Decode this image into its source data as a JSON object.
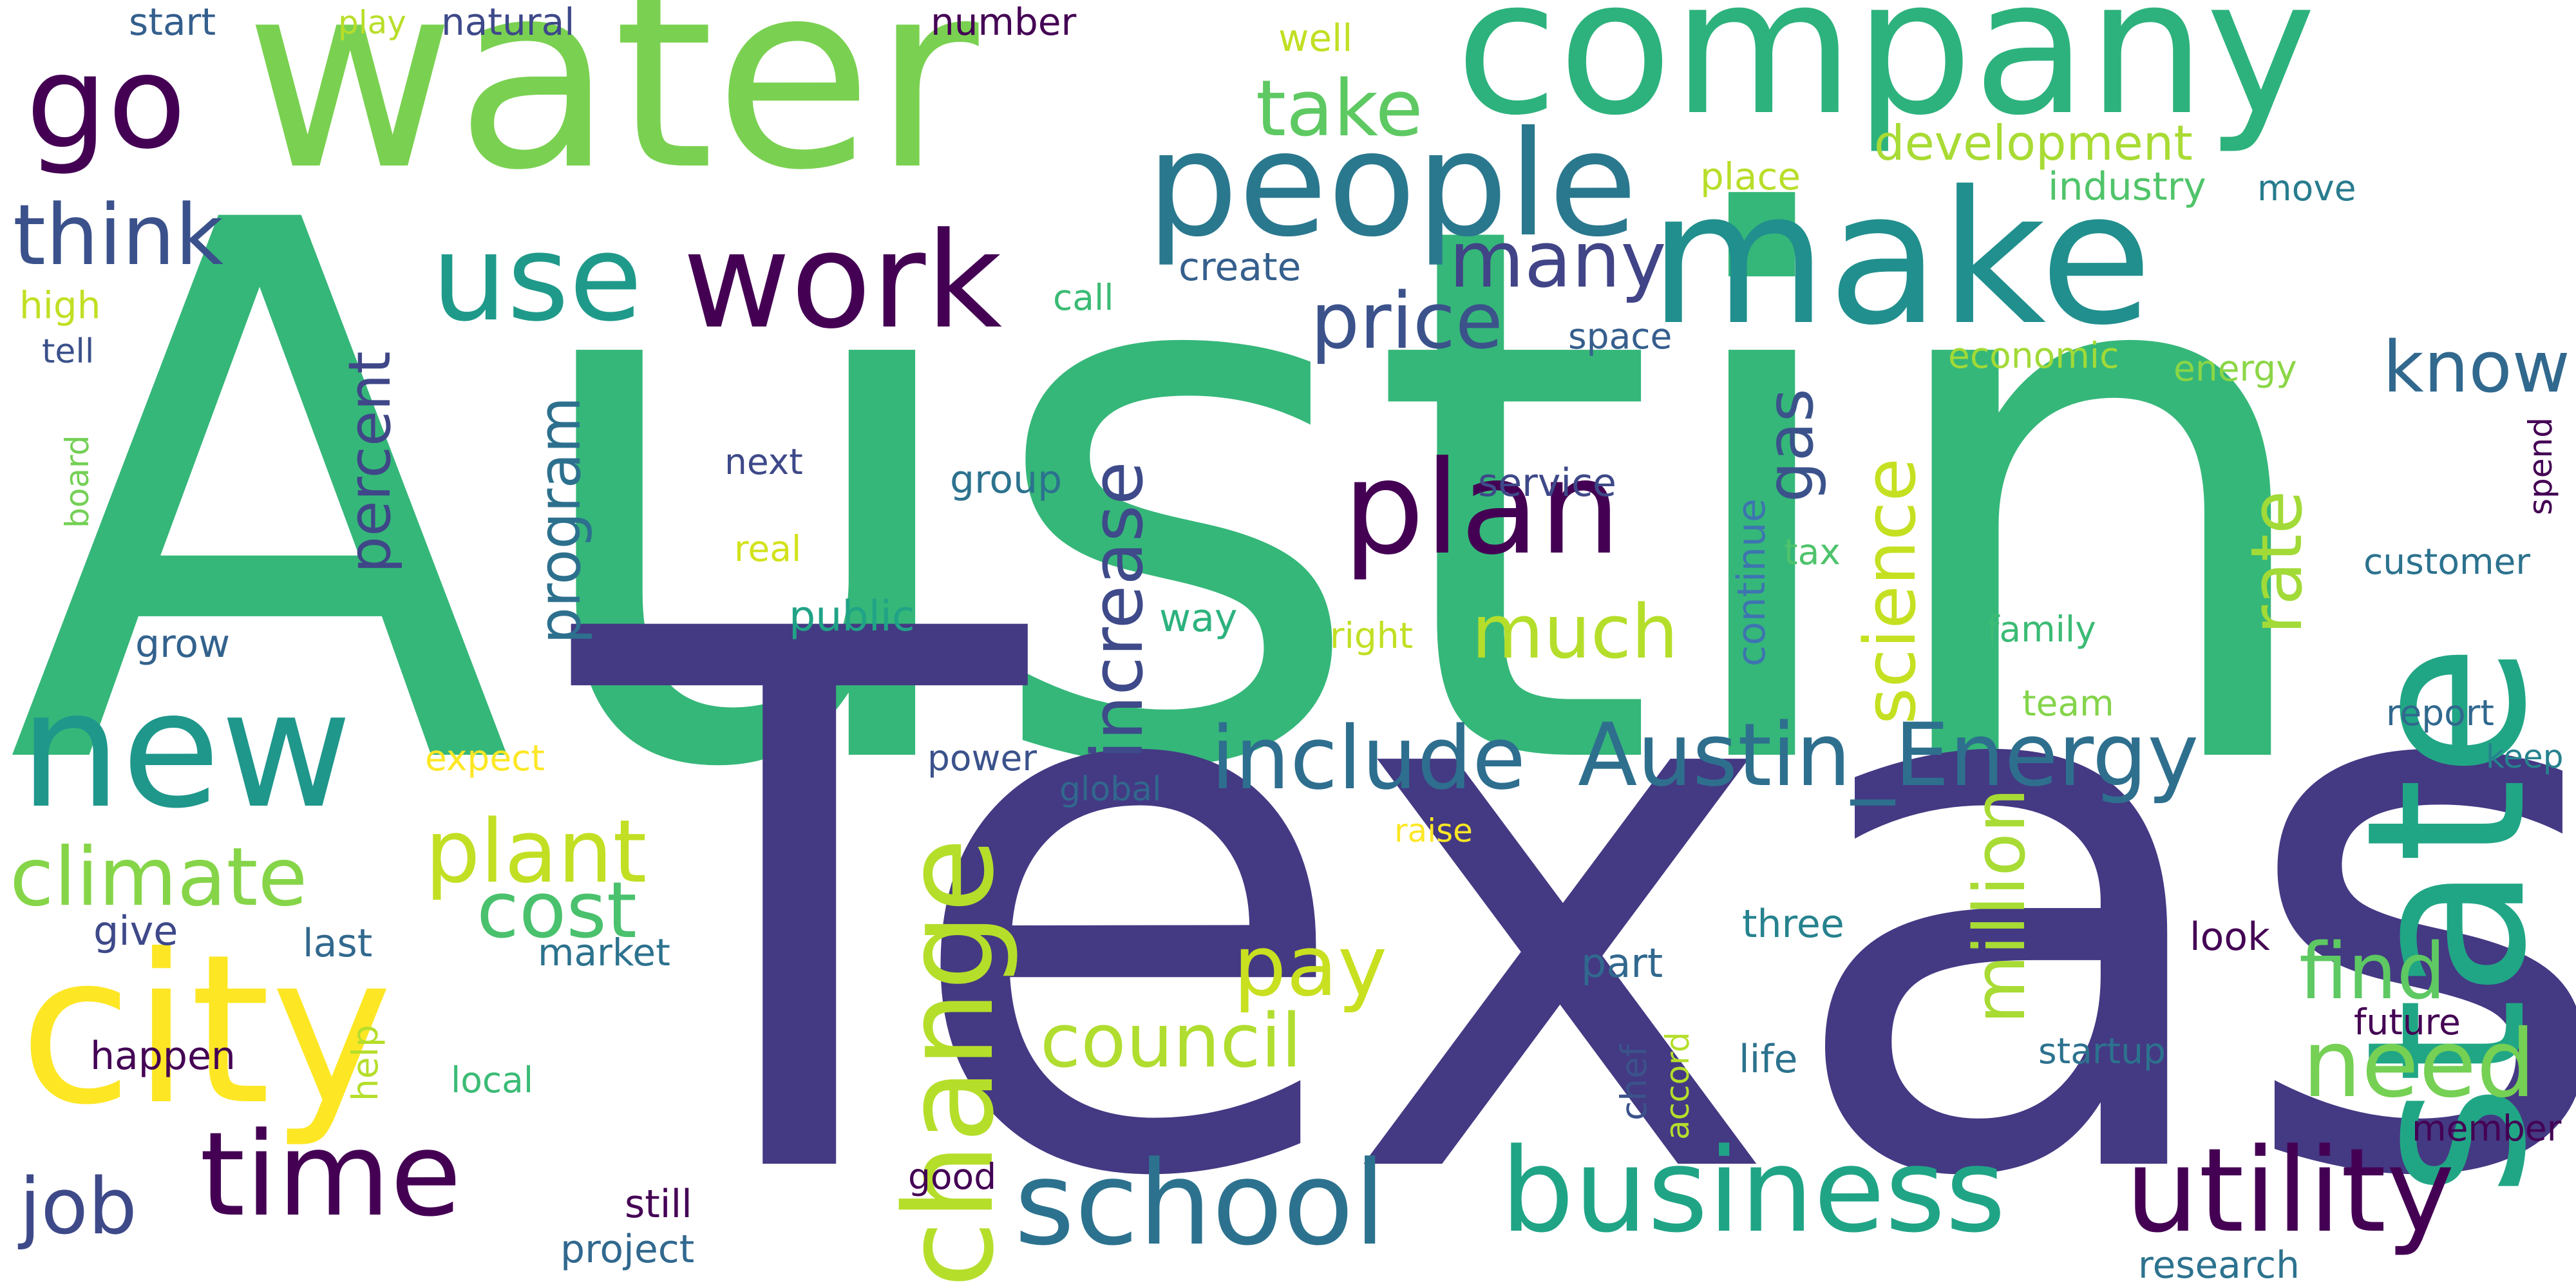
{
  "words": [
    {
      "id": "austin",
      "text": "Austin",
      "color": "#35b779"
    },
    {
      "id": "texas",
      "text": "Texas",
      "color": "#443983"
    },
    {
      "id": "water",
      "text": "water",
      "color": "#7ad151"
    },
    {
      "id": "company",
      "text": "company",
      "color": "#2db27d"
    },
    {
      "id": "state",
      "text": "state",
      "color": "#21a685"
    },
    {
      "id": "city",
      "text": "city",
      "color": "#fde725"
    },
    {
      "id": "make",
      "text": "make",
      "color": "#218f8d"
    },
    {
      "id": "people",
      "text": "people",
      "color": "#2a788e"
    },
    {
      "id": "new",
      "text": "new",
      "color": "#1f978b"
    },
    {
      "id": "work",
      "text": "work",
      "color": "#440154"
    },
    {
      "id": "go",
      "text": "go",
      "color": "#440154"
    },
    {
      "id": "plan",
      "text": "plan",
      "color": "#440154"
    },
    {
      "id": "use",
      "text": "use",
      "color": "#1f9a8a"
    },
    {
      "id": "time",
      "text": "time",
      "color": "#440154"
    },
    {
      "id": "school",
      "text": "school",
      "color": "#2c728e"
    },
    {
      "id": "business",
      "text": "business",
      "color": "#20a486"
    },
    {
      "id": "utility",
      "text": "utility",
      "color": "#440154"
    },
    {
      "id": "change",
      "text": "change",
      "color": "#b5de2b"
    },
    {
      "id": "include",
      "text": "include",
      "color": "#2e6e8e"
    },
    {
      "id": "austin_energy",
      "text": "Austin_Energy",
      "color": "#2e6f8e"
    },
    {
      "id": "think",
      "text": "think",
      "color": "#3b518b"
    },
    {
      "id": "price",
      "text": "price",
      "color": "#3b528b"
    },
    {
      "id": "many",
      "text": "many",
      "color": "#414487"
    },
    {
      "id": "take",
      "text": "take",
      "color": "#5ec962"
    },
    {
      "id": "climate",
      "text": "climate",
      "color": "#86d549"
    },
    {
      "id": "plant",
      "text": "plant",
      "color": "#c2df23"
    },
    {
      "id": "cost",
      "text": "cost",
      "color": "#4ac16d"
    },
    {
      "id": "pay",
      "text": "pay",
      "color": "#c8e020"
    },
    {
      "id": "council",
      "text": "council",
      "color": "#b0dd2f"
    },
    {
      "id": "much",
      "text": "much",
      "color": "#b5de2b"
    },
    {
      "id": "find",
      "text": "find",
      "color": "#5ec962"
    },
    {
      "id": "need",
      "text": "need",
      "color": "#75d054"
    },
    {
      "id": "know",
      "text": "know",
      "color": "#31688e"
    },
    {
      "id": "job",
      "text": "job",
      "color": "#3e4989"
    },
    {
      "id": "increase",
      "text": "increase",
      "color": "#3e4a89"
    },
    {
      "id": "percent",
      "text": "percent",
      "color": "#3f4788"
    },
    {
      "id": "program",
      "text": "program",
      "color": "#2d708e"
    },
    {
      "id": "gas",
      "text": "gas",
      "color": "#3b528b"
    },
    {
      "id": "science",
      "text": "science",
      "color": "#c5e021"
    },
    {
      "id": "rate",
      "text": "rate",
      "color": "#a2da37"
    },
    {
      "id": "million",
      "text": "million",
      "color": "#a8db34"
    },
    {
      "id": "development",
      "text": "development",
      "color": "#a8db34"
    },
    {
      "id": "industry",
      "text": "industry",
      "color": "#50c46a"
    },
    {
      "id": "move",
      "text": "move",
      "color": "#287c8e"
    },
    {
      "id": "place",
      "text": "place",
      "color": "#b8de29"
    },
    {
      "id": "well",
      "text": "well",
      "color": "#c2df23"
    },
    {
      "id": "create",
      "text": "create",
      "color": "#355f8d"
    },
    {
      "id": "call",
      "text": "call",
      "color": "#3bbb75"
    },
    {
      "id": "space",
      "text": "space",
      "color": "#355e8d"
    },
    {
      "id": "economic",
      "text": "economic",
      "color": "#a2da37"
    },
    {
      "id": "energy",
      "text": "energy",
      "color": "#8bd646"
    },
    {
      "id": "start",
      "text": "start",
      "color": "#345f8d"
    },
    {
      "id": "play",
      "text": "play",
      "color": "#b8de29"
    },
    {
      "id": "natural",
      "text": "natural",
      "color": "#3e4989"
    },
    {
      "id": "number",
      "text": "number",
      "color": "#440154"
    },
    {
      "id": "high",
      "text": "high",
      "color": "#c2df23"
    },
    {
      "id": "tell",
      "text": "tell",
      "color": "#3b518b"
    },
    {
      "id": "board",
      "text": "board",
      "color": "#74d055"
    },
    {
      "id": "grow",
      "text": "grow",
      "color": "#33628d"
    },
    {
      "id": "next",
      "text": "next",
      "color": "#3e4989"
    },
    {
      "id": "group",
      "text": "group",
      "color": "#2c728e"
    },
    {
      "id": "service",
      "text": "service",
      "color": "#3e4989"
    },
    {
      "id": "real",
      "text": "real",
      "color": "#d2e21b"
    },
    {
      "id": "public",
      "text": "public",
      "color": "#20a386"
    },
    {
      "id": "way",
      "text": "way",
      "color": "#2db27d"
    },
    {
      "id": "right",
      "text": "right",
      "color": "#c2df23"
    },
    {
      "id": "tax",
      "text": "tax",
      "color": "#4ec36b"
    },
    {
      "id": "continue",
      "text": "continue",
      "color": "#3e74b0"
    },
    {
      "id": "family",
      "text": "family",
      "color": "#3bbb75"
    },
    {
      "id": "spend",
      "text": "spend",
      "color": "#440154"
    },
    {
      "id": "customer",
      "text": "customer",
      "color": "#2c728e"
    },
    {
      "id": "team",
      "text": "team",
      "color": "#84d44b"
    },
    {
      "id": "report",
      "text": "report",
      "color": "#31688e"
    },
    {
      "id": "keep",
      "text": "keep",
      "color": "#26828e"
    },
    {
      "id": "expect",
      "text": "expect",
      "color": "#fde725"
    },
    {
      "id": "power",
      "text": "power",
      "color": "#3b528b"
    },
    {
      "id": "global",
      "text": "global",
      "color": "#31688e"
    },
    {
      "id": "raise",
      "text": "raise",
      "color": "#fde725"
    },
    {
      "id": "give",
      "text": "give",
      "color": "#3e4989"
    },
    {
      "id": "last",
      "text": "last",
      "color": "#31688e"
    },
    {
      "id": "market",
      "text": "market",
      "color": "#2c728e"
    },
    {
      "id": "part",
      "text": "part",
      "color": "#31688e"
    },
    {
      "id": "three",
      "text": "three",
      "color": "#26828e"
    },
    {
      "id": "look",
      "text": "look",
      "color": "#440154"
    },
    {
      "id": "future",
      "text": "future",
      "color": "#440154"
    },
    {
      "id": "happen",
      "text": "happen",
      "color": "#440154"
    },
    {
      "id": "help",
      "text": "help",
      "color": "#b5de2b"
    },
    {
      "id": "local",
      "text": "local",
      "color": "#3bbb75"
    },
    {
      "id": "chef",
      "text": "chef",
      "color": "#3b528b"
    },
    {
      "id": "accord",
      "text": "accord",
      "color": "#b5de2b"
    },
    {
      "id": "life",
      "text": "life",
      "color": "#2c728e"
    },
    {
      "id": "startup",
      "text": "startup",
      "color": "#2c728e"
    },
    {
      "id": "member",
      "text": "member",
      "color": "#440154"
    },
    {
      "id": "still",
      "text": "still",
      "color": "#440154"
    },
    {
      "id": "good",
      "text": "good",
      "color": "#440154"
    },
    {
      "id": "project",
      "text": "project",
      "color": "#31688e"
    },
    {
      "id": "research",
      "text": "research",
      "color": "#2c728e"
    }
  ]
}
